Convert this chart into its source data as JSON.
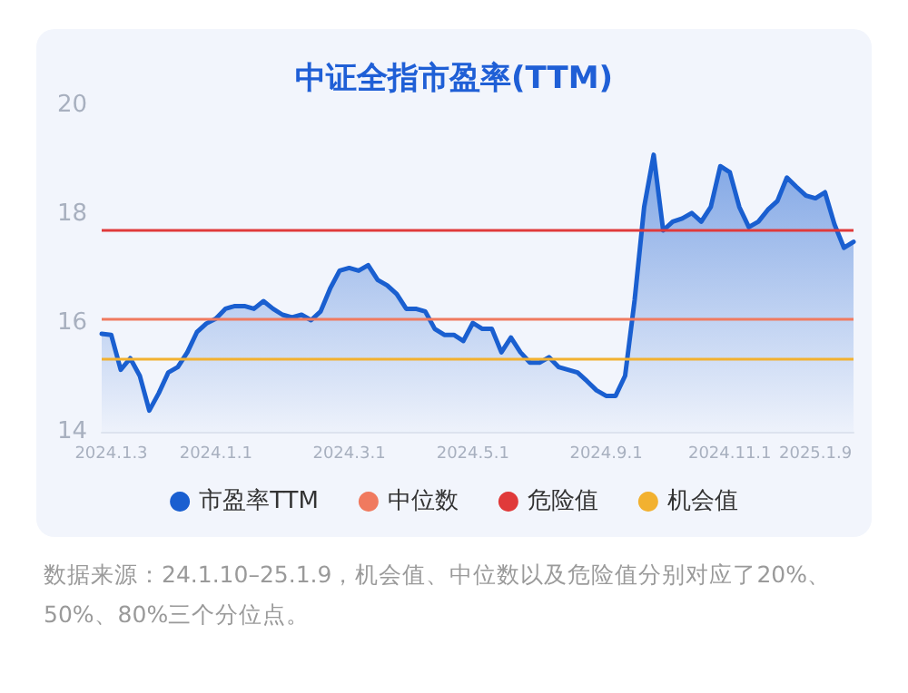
{
  "chart_data": {
    "type": "area",
    "title": "中证全指市盈率(TTM)",
    "categories": [
      null,
      "2024.1.3",
      null,
      null,
      null,
      null,
      null,
      null,
      null,
      null,
      null,
      null,
      "2024.1.1",
      null,
      null,
      null,
      null,
      null,
      null,
      null,
      null,
      null,
      null,
      null,
      null,
      null,
      "2024.3.1",
      null,
      null,
      null,
      null,
      null,
      null,
      null,
      null,
      null,
      null,
      null,
      null,
      "2024.5.1",
      null,
      null,
      null,
      null,
      null,
      null,
      null,
      null,
      null,
      null,
      null,
      null,
      null,
      "2024.9.1",
      null,
      null,
      null,
      null,
      null,
      null,
      null,
      null,
      null,
      null,
      null,
      null,
      "2024.11.1",
      null,
      null,
      null,
      null,
      null,
      null,
      null,
      null,
      "2025.1.9",
      null,
      null,
      null,
      null
    ],
    "series": [
      {
        "name": "市盈率TTM",
        "color": "#1a5fd0",
        "values": [
          15.8,
          15.78,
          15.14,
          15.35,
          15.03,
          14.39,
          14.71,
          15.09,
          15.19,
          15.46,
          15.83,
          15.99,
          16.08,
          16.26,
          16.31,
          16.31,
          16.26,
          16.4,
          16.26,
          16.15,
          16.1,
          16.15,
          16.05,
          16.21,
          16.63,
          16.96,
          17.01,
          16.96,
          17.06,
          16.79,
          16.69,
          16.53,
          16.26,
          16.26,
          16.21,
          15.89,
          15.78,
          15.78,
          15.67,
          16.0,
          15.89,
          15.89,
          15.46,
          15.73,
          15.46,
          15.27,
          15.27,
          15.37,
          15.19,
          15.14,
          15.09,
          14.93,
          14.76,
          14.66,
          14.66,
          15.03,
          16.42,
          18.13,
          19.09,
          17.7,
          17.86,
          17.92,
          18.02,
          17.86,
          18.13,
          18.88,
          18.77,
          18.13,
          17.76,
          17.86,
          18.08,
          18.24,
          18.67,
          18.5,
          18.34,
          18.29,
          18.4,
          17.81,
          17.38,
          17.49
        ]
      }
    ],
    "ylim": [
      14,
      20
    ],
    "yticks": [
      14,
      16,
      18,
      20
    ],
    "grid": false,
    "legend": "bottom",
    "marker": "none",
    "line_style": "solid",
    "ref_lines": [
      {
        "axis": "y",
        "value": 16.08,
        "label": "中位数",
        "color": "#f07a5f"
      },
      {
        "axis": "y",
        "value": 17.72,
        "label": "危险值",
        "color": "#e03a3a"
      },
      {
        "axis": "y",
        "value": 15.33,
        "label": "机会值",
        "color": "#f2b130"
      }
    ],
    "annotations": [
      "数据来源：24.1.10–25.1.9，机会值、中位数以及危险值分别对应了20%、50%、80%三个分位点。"
    ]
  }
}
